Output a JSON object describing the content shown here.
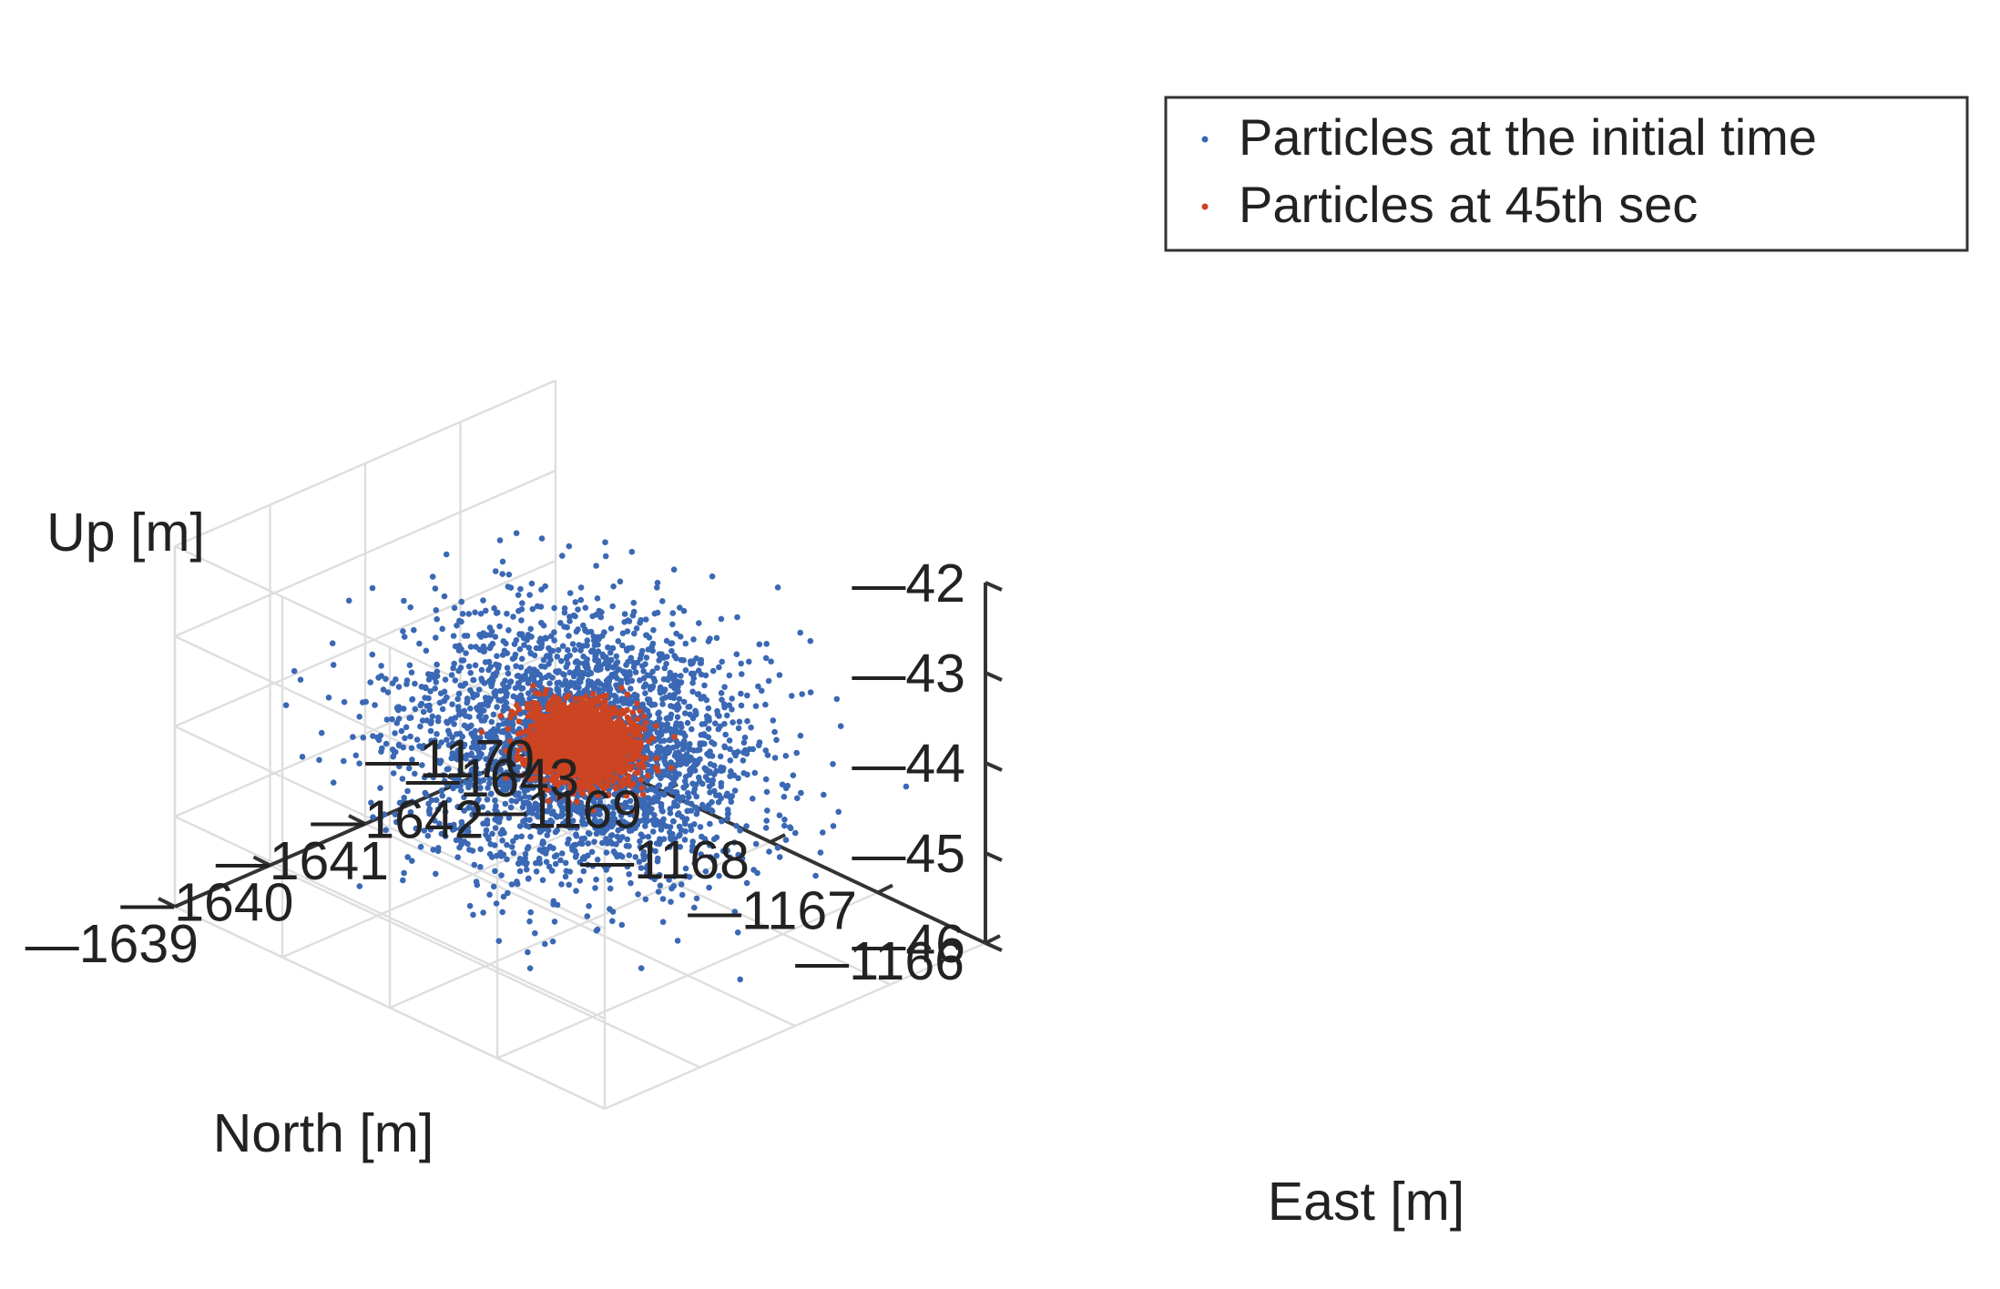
{
  "chart_data": {
    "type": "scatter",
    "projection": "3d-isometric",
    "grid": true,
    "legend_position": "top-right",
    "axes": {
      "x": {
        "label": "East [m]",
        "ticks": [
          1639,
          1640,
          1641,
          1642,
          1643
        ],
        "tick_labels": [
          "1639",
          "1640",
          "1641",
          "1642",
          "1643"
        ],
        "range": [
          1639,
          1643
        ]
      },
      "y": {
        "label": "North [m]",
        "ticks": [
          1166,
          1167,
          1168,
          1169,
          1170
        ],
        "tick_labels": [
          "1166",
          "1167",
          "1168",
          "1169",
          "1170"
        ],
        "range": [
          1166,
          1170
        ]
      },
      "z": {
        "label": "Up [m]",
        "ticks": [
          42,
          43,
          44,
          45,
          46
        ],
        "tick_labels": [
          "42",
          "43",
          "44",
          "45",
          "46"
        ],
        "range": [
          42,
          46
        ]
      }
    },
    "tick_sign": "—",
    "series": [
      {
        "name": "Particles at the initial time",
        "color": "#3a68b4",
        "distribution": "gaussian-cloud",
        "count": 3000,
        "center": {
          "east": 1641.0,
          "north": 1168.0,
          "up": 44.0
        },
        "spread_m": 0.6
      },
      {
        "name": "Particles at 45th sec",
        "color": "#cc4422",
        "distribution": "gaussian-cloud",
        "count": 2200,
        "center": {
          "east": 1641.0,
          "north": 1168.0,
          "up": 44.0
        },
        "spread_m": 0.18
      }
    ]
  }
}
